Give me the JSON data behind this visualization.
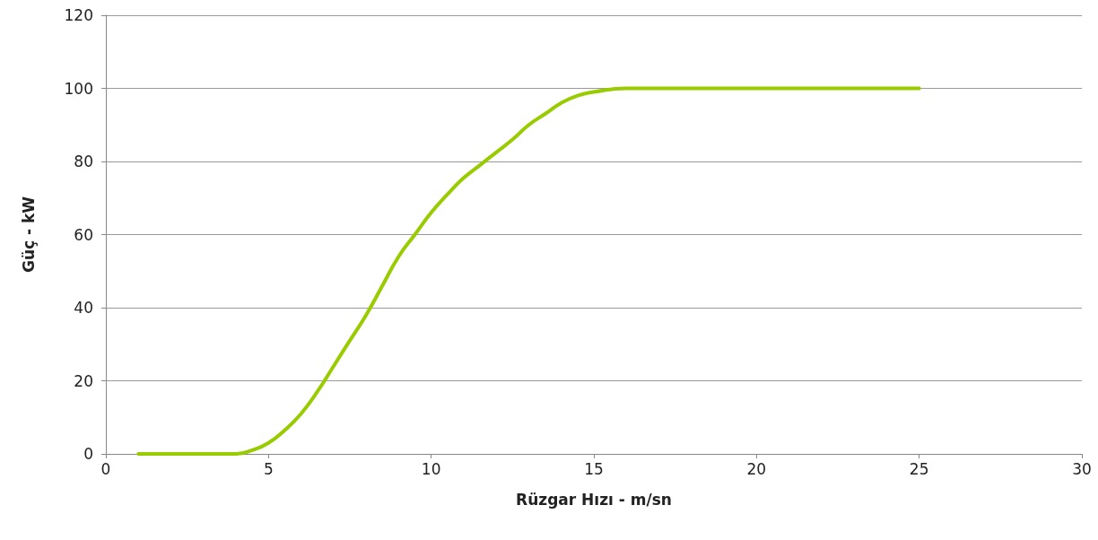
{
  "chart_data": {
    "type": "line",
    "xlabel": "Rüzgar Hızı - m/sn",
    "ylabel": "Güç - kW",
    "x": [
      1,
      2,
      3,
      4,
      4.5,
      5,
      5.5,
      6,
      6.5,
      7,
      7.5,
      8,
      8.5,
      9,
      9.5,
      10,
      10.5,
      11,
      11.5,
      12,
      12.5,
      13,
      13.5,
      14,
      14.5,
      15,
      16,
      17,
      18,
      19,
      20,
      21,
      22,
      23,
      24,
      25
    ],
    "series": [
      {
        "color": "#99cc00",
        "values": [
          0,
          0,
          0,
          0,
          1,
          3,
          6.5,
          11,
          17,
          24,
          31,
          38,
          46,
          54,
          60,
          66,
          71,
          75.5,
          79,
          82.5,
          86,
          90,
          93,
          96,
          98,
          99,
          100,
          100,
          100,
          100,
          100,
          100,
          100,
          100,
          100,
          100
        ]
      }
    ],
    "xlim": [
      0,
      30
    ],
    "xticks": [
      0,
      5,
      10,
      15,
      20,
      25,
      30
    ],
    "ylim": [
      0,
      120
    ],
    "yticks": [
      0,
      20,
      40,
      60,
      80,
      100,
      120
    ],
    "grid": "y",
    "marker": "none",
    "line_style": "solid"
  }
}
